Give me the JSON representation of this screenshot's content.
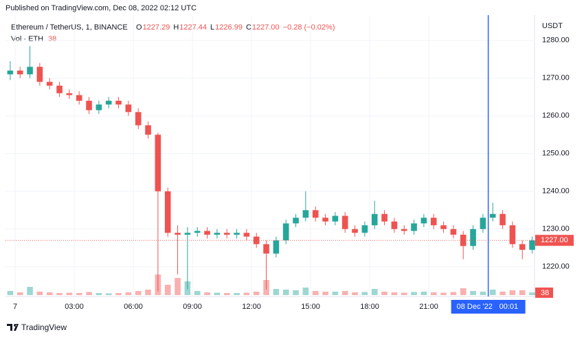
{
  "header": {
    "published": "Published on TradingView.com, Dec 08, 2022 02:12 UTC"
  },
  "chart_data": {
    "type": "candlestick",
    "legend": {
      "symbol": "Ethereum / TetherUS, 1, BINANCE",
      "o_label": "O",
      "open": "1227.29",
      "h_label": "H",
      "high": "1227.44",
      "l_label": "L",
      "low": "1226.99",
      "c_label": "C",
      "close": "1227.00",
      "change": "−0.28 (−0.02%)",
      "vol_label": "Vol · ETH",
      "vol_value": "38"
    },
    "currency": "USDT",
    "up_color": "#26a69a",
    "down_color": "#ef5350",
    "x": [
      -0.25,
      0.25,
      0.75,
      1.25,
      1.75,
      2.25,
      2.75,
      3.25,
      3.75,
      4.25,
      4.75,
      5.25,
      5.75,
      6.25,
      6.75,
      7.25,
      7.75,
      8.25,
      8.75,
      9.25,
      9.75,
      10.25,
      10.75,
      11.25,
      11.75,
      12.25,
      12.75,
      13.25,
      13.75,
      14.25,
      14.75,
      15.25,
      15.75,
      16.25,
      16.75,
      17.25,
      17.75,
      18.25,
      18.75,
      19.25,
      19.75,
      20.25,
      20.75,
      21.25,
      21.75,
      22.25,
      22.75,
      23.25,
      23.75,
      24.25,
      24.75,
      25.25,
      25.75,
      26.25
    ],
    "candles": [
      [
        1271,
        1274.5,
        1269.5,
        1272
      ],
      [
        1272,
        1273,
        1270,
        1271
      ],
      [
        1271,
        1278.5,
        1270,
        1273
      ],
      [
        1273,
        1274,
        1268,
        1269
      ],
      [
        1269,
        1270,
        1267,
        1268
      ],
      [
        1268,
        1269,
        1265,
        1266
      ],
      [
        1266,
        1267,
        1264.5,
        1265.5
      ],
      [
        1265.5,
        1266.5,
        1263,
        1264
      ],
      [
        1264,
        1265,
        1260.5,
        1261.5
      ],
      [
        1261.5,
        1264,
        1260.5,
        1263
      ],
      [
        1263,
        1265,
        1262,
        1264
      ],
      [
        1264,
        1265,
        1262,
        1263
      ],
      [
        1263,
        1264,
        1260,
        1261
      ],
      [
        1261,
        1262,
        1256.5,
        1257.5
      ],
      [
        1257.5,
        1258.5,
        1254,
        1255
      ],
      [
        1255,
        1255.5,
        1213.5,
        1240
      ],
      [
        1240,
        1241,
        1228,
        1229
      ],
      [
        1229,
        1231,
        1218,
        1228.5
      ],
      [
        1228.5,
        1230.5,
        1214,
        1229
      ],
      [
        1229,
        1230.5,
        1228,
        1229.5
      ],
      [
        1229.5,
        1230.5,
        1227.5,
        1228.5
      ],
      [
        1228.5,
        1230,
        1227.5,
        1229
      ],
      [
        1229,
        1230,
        1227.5,
        1228.5
      ],
      [
        1228.5,
        1230,
        1227.5,
        1229
      ],
      [
        1229,
        1230,
        1227,
        1228
      ],
      [
        1228,
        1229,
        1225,
        1226
      ],
      [
        1226,
        1227,
        1214,
        1223.5
      ],
      [
        1223.5,
        1228,
        1222.5,
        1227
      ],
      [
        1227,
        1232.5,
        1226,
        1231.5
      ],
      [
        1231.5,
        1234,
        1230.5,
        1233
      ],
      [
        1233,
        1240,
        1232,
        1235
      ],
      [
        1235,
        1236,
        1232,
        1233
      ],
      [
        1233,
        1234,
        1231,
        1232
      ],
      [
        1232,
        1234.5,
        1231,
        1233.5
      ],
      [
        1233.5,
        1234.5,
        1229,
        1230
      ],
      [
        1230,
        1231,
        1228,
        1229
      ],
      [
        1229,
        1232,
        1228,
        1231
      ],
      [
        1231,
        1237.5,
        1230,
        1234
      ],
      [
        1234,
        1235,
        1231,
        1232
      ],
      [
        1232,
        1233,
        1229,
        1230
      ],
      [
        1230,
        1231,
        1228.5,
        1229.5
      ],
      [
        1229.5,
        1232.5,
        1228.5,
        1231.5
      ],
      [
        1231.5,
        1234,
        1230.5,
        1233
      ],
      [
        1233,
        1234,
        1230,
        1231
      ],
      [
        1231,
        1232,
        1229,
        1230
      ],
      [
        1230,
        1231,
        1227.5,
        1228.5
      ],
      [
        1228.5,
        1229.5,
        1222,
        1225.5
      ],
      [
        1225.5,
        1231,
        1224.5,
        1230
      ],
      [
        1230,
        1234,
        1229,
        1233
      ],
      [
        1233,
        1237,
        1232,
        1234
      ],
      [
        1234,
        1235,
        1230,
        1231
      ],
      [
        1231,
        1232,
        1225,
        1226
      ],
      [
        1226,
        1227,
        1222,
        1224.5
      ],
      [
        1224.5,
        1228,
        1223.5,
        1227
      ]
    ],
    "volumes": [
      60,
      40,
      120,
      50,
      40,
      30,
      35,
      30,
      45,
      30,
      25,
      30,
      40,
      60,
      80,
      300,
      150,
      250,
      200,
      60,
      40,
      35,
      30,
      30,
      35,
      50,
      220,
      90,
      80,
      70,
      110,
      60,
      50,
      50,
      60,
      40,
      45,
      90,
      50,
      40,
      35,
      45,
      50,
      40,
      35,
      45,
      100,
      60,
      50,
      80,
      50,
      70,
      70,
      38
    ],
    "ylim": [
      1212.5,
      1286.7
    ],
    "yticks": [
      {
        "value": 1220,
        "label": "1220.00"
      },
      {
        "value": 1230,
        "label": "1230.00"
      },
      {
        "value": 1240,
        "label": "1240.00"
      },
      {
        "value": 1250,
        "label": "1250.00"
      },
      {
        "value": 1260,
        "label": "1260.00"
      },
      {
        "value": 1270,
        "label": "1270.00"
      },
      {
        "value": 1280,
        "label": "1280.00"
      }
    ],
    "xlim": [
      -0.49,
      26.37
    ],
    "xticks": [
      {
        "value": 0,
        "label": "7"
      },
      {
        "value": 3,
        "label": "03:00"
      },
      {
        "value": 6,
        "label": "06:00"
      },
      {
        "value": 9,
        "label": "09:00"
      },
      {
        "value": 12,
        "label": "12:00"
      },
      {
        "value": 15,
        "label": "15:00"
      },
      {
        "value": 18,
        "label": "18:00"
      },
      {
        "value": 21,
        "label": "21:00"
      }
    ],
    "last_price": {
      "value": 1227,
      "label": "1227.00"
    },
    "crosshair": {
      "x": 24.02,
      "date": "08 Dec '22",
      "time": "00:01"
    }
  },
  "footer": {
    "brand": "TradingView"
  }
}
